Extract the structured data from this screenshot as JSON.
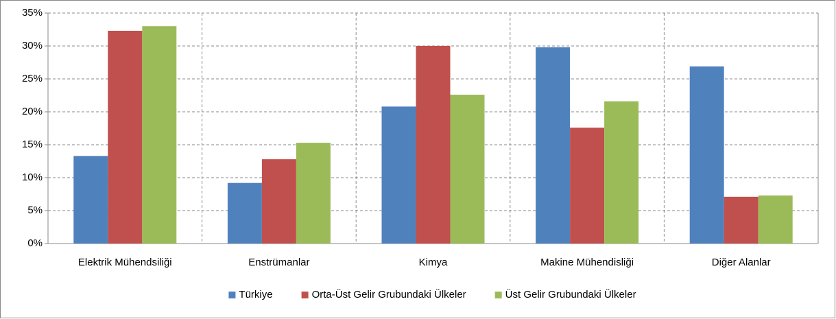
{
  "chart_data": {
    "type": "bar",
    "categories": [
      "Elektrik Mühendsiliği",
      "Enstrümanlar",
      "Kimya",
      "Makine Mühendisliği",
      "Diğer Alanlar"
    ],
    "series": [
      {
        "name": "Türkiye",
        "color": "#4f81bd",
        "values": [
          13.3,
          9.2,
          20.8,
          29.8,
          26.9
        ]
      },
      {
        "name": "Orta-Üst Gelir Grubundaki Ülkeler",
        "color": "#c0504d",
        "values": [
          32.3,
          12.8,
          30.0,
          17.6,
          7.1
        ]
      },
      {
        "name": "Üst Gelir Grubundaki Ülkeler",
        "color": "#9bbb59",
        "values": [
          33.0,
          15.3,
          22.6,
          21.6,
          7.3
        ]
      }
    ],
    "ylim": [
      0,
      35
    ],
    "yticks": [
      {
        "value": 0,
        "label": "0%"
      },
      {
        "value": 5,
        "label": "5%"
      },
      {
        "value": 10,
        "label": "10%"
      },
      {
        "value": 15,
        "label": "15%"
      },
      {
        "value": 20,
        "label": "20%"
      },
      {
        "value": 25,
        "label": "25%"
      },
      {
        "value": 30,
        "label": "30%"
      },
      {
        "value": 35,
        "label": "35%"
      }
    ],
    "grid": true,
    "legend": "bottom"
  }
}
